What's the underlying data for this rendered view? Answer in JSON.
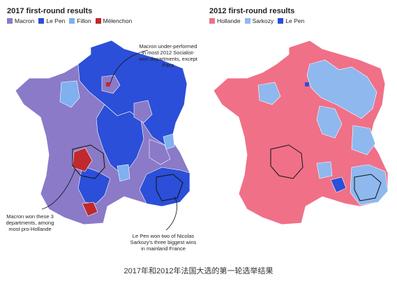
{
  "map_2017": {
    "title": "2017 first-round results",
    "legend": [
      {
        "label": "Macron",
        "color": "#8a7ac8"
      },
      {
        "label": "Le Pen",
        "color": "#2b4fd8"
      },
      {
        "label": "Fillon",
        "color": "#7fb0f0"
      },
      {
        "label": "Mélenchon",
        "color": "#c0292e"
      }
    ],
    "annotations": {
      "paris": "Macron under-performed in most 2012 Socialist-won departments, except Paris",
      "macron_won": "Macron won these 3 departments, among most pro-Hollande",
      "lepen_won": "Le Pen won two of Nicolas Sarkozy's three biggest wins in mainland France"
    }
  },
  "map_2012": {
    "title": "2012 first-round results",
    "legend": [
      {
        "label": "Hollande",
        "color": "#f07088"
      },
      {
        "label": "Sarkozy",
        "color": "#8fb8ee"
      },
      {
        "label": "Le Pen",
        "color": "#2b4fd8"
      }
    ]
  },
  "caption": "2017年和2012年法国大选的第一轮选举结果"
}
